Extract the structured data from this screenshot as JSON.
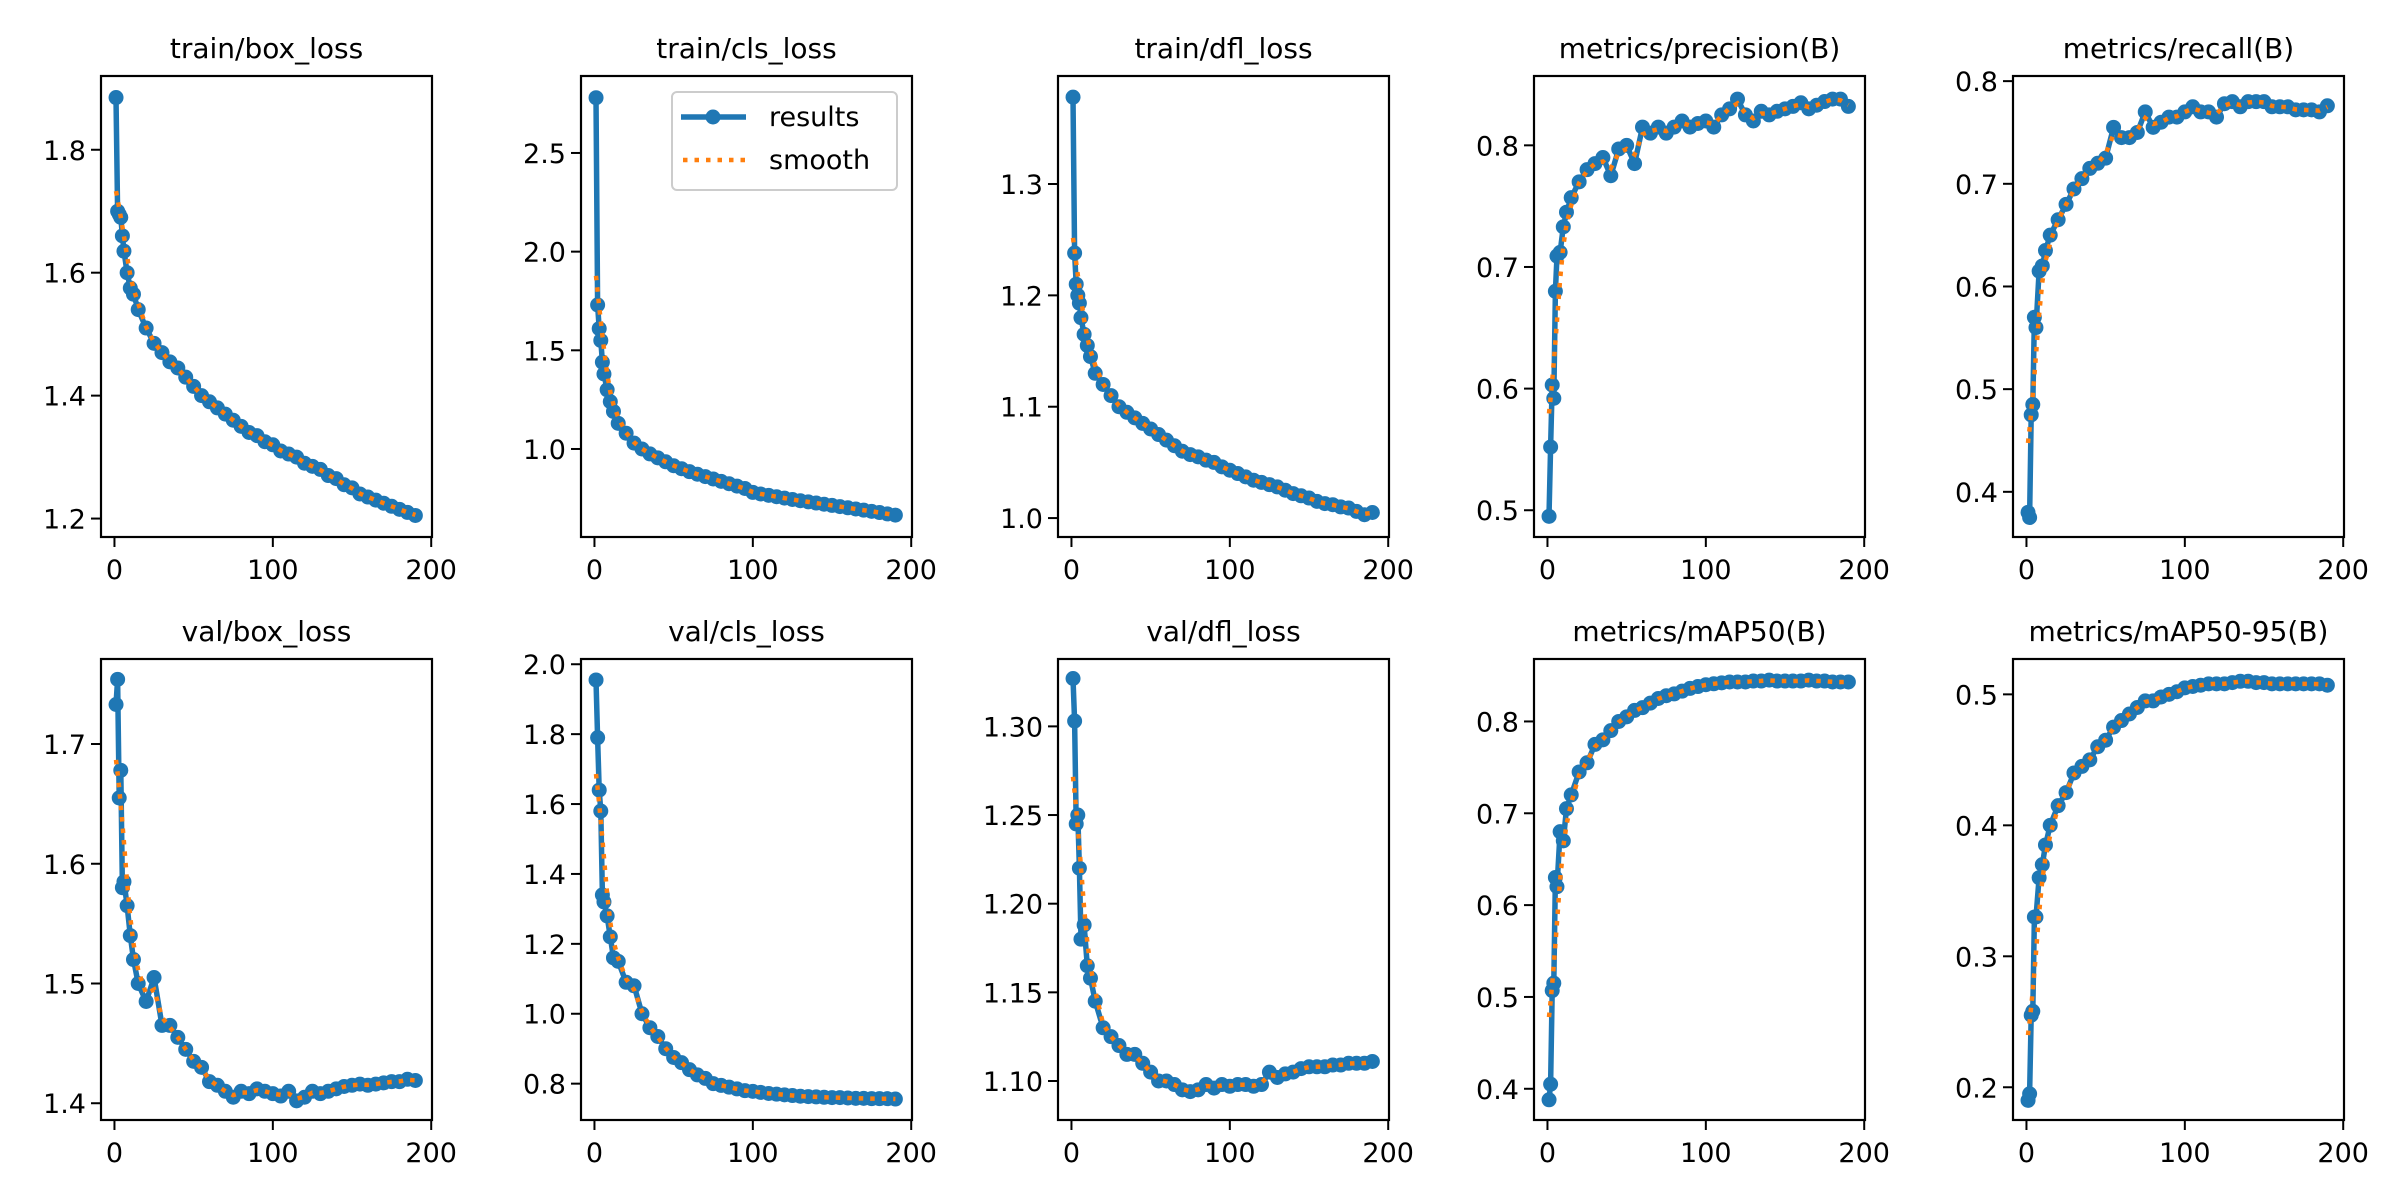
{
  "colors": {
    "results": "#1f77b4",
    "smooth": "#ff7f0e"
  },
  "legend": {
    "panel": "train/cls_loss",
    "placement": "upper right",
    "entries": [
      "results",
      "smooth"
    ]
  },
  "chart_data": [
    {
      "type": "line",
      "title": "train/box_loss",
      "xlim": [
        -8.5,
        200.5
      ],
      "xticks": [
        "0",
        "100",
        "200"
      ],
      "ylim": [
        1.17,
        1.92
      ],
      "yticks": [
        "1.2",
        "1.4",
        "1.6",
        "1.8"
      ],
      "grid": false,
      "x": [
        1,
        2,
        3,
        4,
        5,
        6,
        8,
        10,
        12,
        15,
        20,
        25,
        30,
        35,
        40,
        45,
        50,
        55,
        60,
        65,
        70,
        75,
        80,
        85,
        90,
        95,
        100,
        105,
        110,
        115,
        120,
        125,
        130,
        135,
        140,
        145,
        150,
        155,
        160,
        165,
        170,
        175,
        180,
        185,
        190
      ],
      "series": [
        {
          "name": "results",
          "values": [
            1.885,
            1.7,
            1.695,
            1.69,
            1.66,
            1.635,
            1.6,
            1.575,
            1.565,
            1.54,
            1.51,
            1.485,
            1.47,
            1.455,
            1.445,
            1.43,
            1.415,
            1.4,
            1.39,
            1.38,
            1.37,
            1.36,
            1.35,
            1.34,
            1.335,
            1.325,
            1.32,
            1.31,
            1.305,
            1.3,
            1.29,
            1.285,
            1.28,
            1.27,
            1.265,
            1.255,
            1.25,
            1.24,
            1.235,
            1.23,
            1.225,
            1.22,
            1.215,
            1.21,
            1.205
          ]
        },
        {
          "name": "smooth"
        }
      ]
    },
    {
      "type": "line",
      "title": "train/cls_loss",
      "xlim": [
        -8.5,
        200.5
      ],
      "xticks": [
        "0",
        "100",
        "200"
      ],
      "ylim": [
        0.554,
        2.89
      ],
      "yticks": [
        "1.0",
        "1.5",
        "2.0",
        "2.5"
      ],
      "grid": false,
      "legend": true,
      "x": [
        1,
        2,
        3,
        4,
        5,
        6,
        8,
        10,
        12,
        15,
        20,
        25,
        30,
        35,
        40,
        45,
        50,
        55,
        60,
        65,
        70,
        75,
        80,
        85,
        90,
        95,
        100,
        105,
        110,
        115,
        120,
        125,
        130,
        135,
        140,
        145,
        150,
        155,
        160,
        165,
        170,
        175,
        180,
        185,
        190
      ],
      "series": [
        {
          "name": "results",
          "values": [
            2.78,
            1.73,
            1.61,
            1.55,
            1.44,
            1.38,
            1.3,
            1.24,
            1.19,
            1.13,
            1.08,
            1.03,
            1.0,
            0.975,
            0.955,
            0.935,
            0.915,
            0.9,
            0.885,
            0.872,
            0.86,
            0.848,
            0.836,
            0.824,
            0.812,
            0.8,
            0.78,
            0.772,
            0.765,
            0.758,
            0.751,
            0.744,
            0.738,
            0.732,
            0.726,
            0.72,
            0.714,
            0.708,
            0.702,
            0.696,
            0.69,
            0.684,
            0.678,
            0.671,
            0.665
          ]
        },
        {
          "name": "smooth"
        }
      ]
    },
    {
      "type": "line",
      "title": "train/dfl_loss",
      "xlim": [
        -8.5,
        200.5
      ],
      "xticks": [
        "0",
        "100",
        "200"
      ],
      "ylim": [
        0.983,
        1.397
      ],
      "yticks": [
        "1.0",
        "1.1",
        "1.2",
        "1.3"
      ],
      "grid": false,
      "x": [
        1,
        2,
        3,
        4,
        5,
        6,
        8,
        10,
        12,
        15,
        20,
        25,
        30,
        35,
        40,
        45,
        50,
        55,
        60,
        65,
        70,
        75,
        80,
        85,
        90,
        95,
        100,
        105,
        110,
        115,
        120,
        125,
        130,
        135,
        140,
        145,
        150,
        155,
        160,
        165,
        170,
        175,
        180,
        185,
        190
      ],
      "series": [
        {
          "name": "results",
          "values": [
            1.378,
            1.238,
            1.21,
            1.2,
            1.193,
            1.18,
            1.165,
            1.155,
            1.145,
            1.13,
            1.12,
            1.11,
            1.1,
            1.095,
            1.09,
            1.085,
            1.08,
            1.075,
            1.07,
            1.065,
            1.06,
            1.057,
            1.055,
            1.052,
            1.05,
            1.046,
            1.043,
            1.04,
            1.037,
            1.034,
            1.032,
            1.03,
            1.028,
            1.025,
            1.022,
            1.02,
            1.018,
            1.015,
            1.013,
            1.012,
            1.01,
            1.009,
            1.006,
            1.003,
            1.005
          ]
        },
        {
          "name": "smooth"
        }
      ]
    },
    {
      "type": "line",
      "title": "metrics/precision(B)",
      "xlim": [
        -8.5,
        200.5
      ],
      "xticks": [
        "0",
        "100",
        "200"
      ],
      "ylim": [
        0.478,
        0.857
      ],
      "yticks": [
        "0.5",
        "0.6",
        "0.7",
        "0.8"
      ],
      "grid": false,
      "x": [
        1,
        2,
        3,
        4,
        5,
        6,
        8,
        10,
        12,
        15,
        20,
        25,
        30,
        35,
        40,
        45,
        50,
        55,
        60,
        65,
        70,
        75,
        80,
        85,
        90,
        95,
        100,
        105,
        110,
        115,
        120,
        125,
        130,
        135,
        140,
        145,
        150,
        155,
        160,
        165,
        170,
        175,
        180,
        185,
        190
      ],
      "series": [
        {
          "name": "results",
          "values": [
            0.495,
            0.552,
            0.603,
            0.592,
            0.68,
            0.709,
            0.712,
            0.733,
            0.745,
            0.757,
            0.77,
            0.78,
            0.785,
            0.79,
            0.775,
            0.797,
            0.8,
            0.785,
            0.815,
            0.81,
            0.815,
            0.81,
            0.815,
            0.82,
            0.815,
            0.818,
            0.82,
            0.815,
            0.825,
            0.83,
            0.838,
            0.825,
            0.82,
            0.828,
            0.825,
            0.828,
            0.83,
            0.832,
            0.835,
            0.83,
            0.833,
            0.836,
            0.838,
            0.838,
            0.832
          ]
        },
        {
          "name": "smooth"
        }
      ]
    },
    {
      "type": "line",
      "title": "metrics/recall(B)",
      "xlim": [
        -8.5,
        200.5
      ],
      "xticks": [
        "0",
        "100",
        "200"
      ],
      "ylim": [
        0.356,
        0.805
      ],
      "yticks": [
        "0.4",
        "0.5",
        "0.6",
        "0.7",
        "0.8"
      ],
      "grid": false,
      "x": [
        1,
        2,
        3,
        4,
        5,
        6,
        8,
        10,
        12,
        15,
        20,
        25,
        30,
        35,
        40,
        45,
        50,
        55,
        60,
        65,
        70,
        75,
        80,
        85,
        90,
        95,
        100,
        105,
        110,
        115,
        120,
        125,
        130,
        135,
        140,
        145,
        150,
        155,
        160,
        165,
        170,
        175,
        180,
        185,
        190
      ],
      "series": [
        {
          "name": "results",
          "values": [
            0.38,
            0.375,
            0.475,
            0.485,
            0.57,
            0.56,
            0.615,
            0.62,
            0.635,
            0.65,
            0.665,
            0.68,
            0.695,
            0.705,
            0.715,
            0.72,
            0.725,
            0.755,
            0.745,
            0.745,
            0.75,
            0.77,
            0.755,
            0.76,
            0.765,
            0.765,
            0.77,
            0.775,
            0.77,
            0.77,
            0.765,
            0.778,
            0.78,
            0.775,
            0.78,
            0.78,
            0.78,
            0.775,
            0.775,
            0.775,
            0.772,
            0.772,
            0.772,
            0.77,
            0.776
          ]
        },
        {
          "name": "smooth"
        }
      ]
    },
    {
      "type": "line",
      "title": "val/box_loss",
      "xlim": [
        -8.5,
        200.5
      ],
      "xticks": [
        "0",
        "100",
        "200"
      ],
      "ylim": [
        1.386,
        1.771
      ],
      "yticks": [
        "1.4",
        "1.5",
        "1.6",
        "1.7"
      ],
      "grid": false,
      "x": [
        1,
        2,
        3,
        4,
        5,
        6,
        8,
        10,
        12,
        15,
        20,
        25,
        30,
        35,
        40,
        45,
        50,
        55,
        60,
        65,
        70,
        75,
        80,
        85,
        90,
        95,
        100,
        105,
        110,
        115,
        120,
        125,
        130,
        135,
        140,
        145,
        150,
        155,
        160,
        165,
        170,
        175,
        180,
        185,
        190
      ],
      "series": [
        {
          "name": "results",
          "values": [
            1.733,
            1.754,
            1.655,
            1.678,
            1.58,
            1.585,
            1.565,
            1.54,
            1.52,
            1.5,
            1.485,
            1.505,
            1.465,
            1.465,
            1.455,
            1.445,
            1.435,
            1.43,
            1.418,
            1.415,
            1.41,
            1.405,
            1.41,
            1.408,
            1.412,
            1.41,
            1.408,
            1.406,
            1.41,
            1.402,
            1.405,
            1.41,
            1.408,
            1.41,
            1.412,
            1.414,
            1.415,
            1.416,
            1.415,
            1.416,
            1.417,
            1.418,
            1.418,
            1.42,
            1.419
          ]
        },
        {
          "name": "smooth"
        }
      ]
    },
    {
      "type": "line",
      "title": "val/cls_loss",
      "xlim": [
        -8.5,
        200.5
      ],
      "xticks": [
        "0",
        "100",
        "200"
      ],
      "ylim": [
        0.696,
        2.015
      ],
      "yticks": [
        "0.8",
        "1.0",
        "1.2",
        "1.4",
        "1.6",
        "1.8",
        "2.0"
      ],
      "grid": false,
      "x": [
        1,
        2,
        3,
        4,
        5,
        6,
        8,
        10,
        12,
        15,
        20,
        25,
        30,
        35,
        40,
        45,
        50,
        55,
        60,
        65,
        70,
        75,
        80,
        85,
        90,
        95,
        100,
        105,
        110,
        115,
        120,
        125,
        130,
        135,
        140,
        145,
        150,
        155,
        160,
        165,
        170,
        175,
        180,
        185,
        190
      ],
      "series": [
        {
          "name": "results",
          "values": [
            1.955,
            1.79,
            1.64,
            1.58,
            1.34,
            1.32,
            1.28,
            1.22,
            1.16,
            1.15,
            1.09,
            1.08,
            1.0,
            0.96,
            0.935,
            0.9,
            0.875,
            0.86,
            0.84,
            0.825,
            0.815,
            0.8,
            0.795,
            0.79,
            0.785,
            0.78,
            0.778,
            0.775,
            0.772,
            0.77,
            0.768,
            0.766,
            0.764,
            0.763,
            0.762,
            0.761,
            0.76,
            0.76,
            0.759,
            0.758,
            0.758,
            0.757,
            0.757,
            0.757,
            0.756
          ]
        },
        {
          "name": "smooth"
        }
      ]
    },
    {
      "type": "line",
      "title": "val/dfl_loss",
      "xlim": [
        -8.5,
        200.5
      ],
      "xticks": [
        "0",
        "100",
        "200"
      ],
      "ylim": [
        1.078,
        1.338
      ],
      "yticks": [
        "1.10",
        "1.15",
        "1.20",
        "1.25",
        "1.30"
      ],
      "grid": false,
      "x": [
        1,
        2,
        3,
        4,
        5,
        6,
        8,
        10,
        12,
        15,
        20,
        25,
        30,
        35,
        40,
        45,
        50,
        55,
        60,
        65,
        70,
        75,
        80,
        85,
        90,
        95,
        100,
        105,
        110,
        115,
        120,
        125,
        130,
        135,
        140,
        145,
        150,
        155,
        160,
        165,
        170,
        175,
        180,
        185,
        190
      ],
      "series": [
        {
          "name": "results",
          "values": [
            1.327,
            1.303,
            1.245,
            1.25,
            1.22,
            1.18,
            1.188,
            1.165,
            1.158,
            1.145,
            1.13,
            1.125,
            1.12,
            1.115,
            1.115,
            1.11,
            1.105,
            1.1,
            1.1,
            1.098,
            1.095,
            1.094,
            1.095,
            1.098,
            1.096,
            1.098,
            1.097,
            1.098,
            1.098,
            1.097,
            1.098,
            1.105,
            1.102,
            1.104,
            1.105,
            1.107,
            1.108,
            1.108,
            1.108,
            1.109,
            1.109,
            1.11,
            1.11,
            1.11,
            1.111
          ]
        },
        {
          "name": "smooth"
        }
      ]
    },
    {
      "type": "line",
      "title": "metrics/mAP50(B)",
      "xlim": [
        -8.5,
        200.5
      ],
      "xticks": [
        "0",
        "100",
        "200"
      ],
      "ylim": [
        0.366,
        0.868
      ],
      "yticks": [
        "0.4",
        "0.5",
        "0.6",
        "0.7",
        "0.8"
      ],
      "grid": false,
      "x": [
        1,
        2,
        3,
        4,
        5,
        6,
        8,
        10,
        12,
        15,
        20,
        25,
        30,
        35,
        40,
        45,
        50,
        55,
        60,
        65,
        70,
        75,
        80,
        85,
        90,
        95,
        100,
        105,
        110,
        115,
        120,
        125,
        130,
        135,
        140,
        145,
        150,
        155,
        160,
        165,
        170,
        175,
        180,
        185,
        190
      ],
      "series": [
        {
          "name": "results",
          "values": [
            0.388,
            0.405,
            0.507,
            0.515,
            0.63,
            0.62,
            0.68,
            0.67,
            0.705,
            0.72,
            0.745,
            0.755,
            0.775,
            0.78,
            0.79,
            0.8,
            0.805,
            0.812,
            0.815,
            0.82,
            0.825,
            0.828,
            0.83,
            0.833,
            0.836,
            0.838,
            0.84,
            0.841,
            0.842,
            0.843,
            0.843,
            0.843,
            0.844,
            0.844,
            0.845,
            0.844,
            0.844,
            0.844,
            0.844,
            0.845,
            0.844,
            0.844,
            0.843,
            0.843,
            0.843
          ]
        },
        {
          "name": "smooth"
        }
      ]
    },
    {
      "type": "line",
      "title": "metrics/mAP50-95(B)",
      "xlim": [
        -8.5,
        200.5
      ],
      "xticks": [
        "0",
        "100",
        "200"
      ],
      "ylim": [
        0.175,
        0.527
      ],
      "yticks": [
        "0.2",
        "0.3",
        "0.4",
        "0.5"
      ],
      "grid": false,
      "x": [
        1,
        2,
        3,
        4,
        5,
        6,
        8,
        10,
        12,
        15,
        20,
        25,
        30,
        35,
        40,
        45,
        50,
        55,
        60,
        65,
        70,
        75,
        80,
        85,
        90,
        95,
        100,
        105,
        110,
        115,
        120,
        125,
        130,
        135,
        140,
        145,
        150,
        155,
        160,
        165,
        170,
        175,
        180,
        185,
        190
      ],
      "series": [
        {
          "name": "results",
          "values": [
            0.19,
            0.195,
            0.255,
            0.258,
            0.33,
            0.33,
            0.36,
            0.37,
            0.385,
            0.4,
            0.415,
            0.425,
            0.44,
            0.445,
            0.45,
            0.46,
            0.465,
            0.475,
            0.48,
            0.485,
            0.49,
            0.495,
            0.495,
            0.498,
            0.5,
            0.502,
            0.505,
            0.506,
            0.507,
            0.508,
            0.508,
            0.508,
            0.509,
            0.51,
            0.51,
            0.509,
            0.509,
            0.508,
            0.508,
            0.508,
            0.508,
            0.508,
            0.508,
            0.508,
            0.507
          ]
        },
        {
          "name": "smooth"
        }
      ]
    }
  ]
}
